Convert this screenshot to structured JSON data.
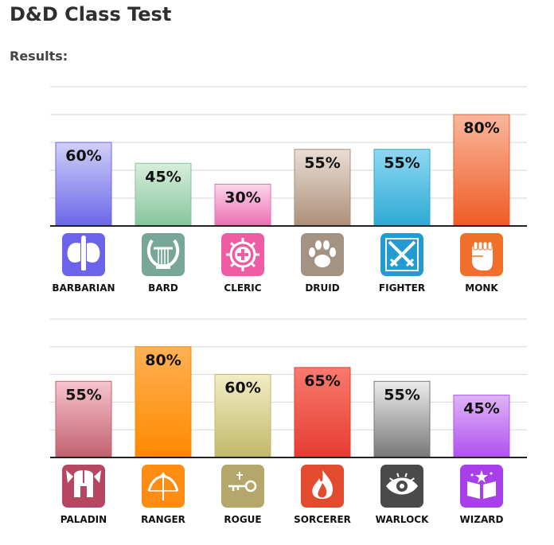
{
  "page": {
    "title": "D&D Class Test",
    "results_label": "Results:"
  },
  "chart_data": [
    {
      "type": "bar",
      "categories": [
        "BARBARIAN",
        "BARD",
        "CLERIC",
        "DRUID",
        "FIGHTER",
        "MONK"
      ],
      "values": [
        60,
        45,
        30,
        55,
        55,
        80
      ],
      "labels": [
        "60%",
        "45%",
        "30%",
        "55%",
        "55%",
        "80%"
      ],
      "ylim": [
        0,
        100
      ],
      "grid": true,
      "colors": [
        [
          "#d0d0f7",
          "#6b66e8"
        ],
        [
          "#d7eedc",
          "#86c59b"
        ],
        [
          "#fcd6ea",
          "#ea6fb1"
        ],
        [
          "#e9ded6",
          "#ad8f78"
        ],
        [
          "#8ed8f3",
          "#2ea9d3"
        ],
        [
          "#f8b79d",
          "#ef5b25"
        ]
      ],
      "icons": [
        {
          "name": "battle-axe-icon",
          "color": "#6b63e9"
        },
        {
          "name": "lyre-icon",
          "color": "#78a79a"
        },
        {
          "name": "holy-symbol-icon",
          "color": "#ee5ca3"
        },
        {
          "name": "paw-icon",
          "color": "#a49382"
        },
        {
          "name": "crossed-swords-icon",
          "color": "#229bd2"
        },
        {
          "name": "fist-icon",
          "color": "#f0702b"
        }
      ]
    },
    {
      "type": "bar",
      "categories": [
        "PALADIN",
        "RANGER",
        "ROGUE",
        "SORCERER",
        "WARLOCK",
        "WIZARD"
      ],
      "values": [
        55,
        80,
        60,
        65,
        55,
        45
      ],
      "labels": [
        "55%",
        "80%",
        "60%",
        "65%",
        "55%",
        "45%"
      ],
      "ylim": [
        0,
        100
      ],
      "grid": true,
      "colors": [
        [
          "#f6c4cf",
          "#c1606e"
        ],
        [
          "#ffb054",
          "#ff8a00"
        ],
        [
          "#f1edc5",
          "#c2b86a"
        ],
        [
          "#f97a6d",
          "#e53c32"
        ],
        [
          "#ececec",
          "#777777"
        ],
        [
          "#dfb5f6",
          "#b050ee"
        ]
      ],
      "icons": [
        {
          "name": "winged-helmet-icon",
          "color": "#b74662"
        },
        {
          "name": "bow-icon",
          "color": "#ff8d14"
        },
        {
          "name": "lockpick-icon",
          "color": "#b5a76c"
        },
        {
          "name": "flame-icon",
          "color": "#e34b2e"
        },
        {
          "name": "eye-icon",
          "color": "#4a4a4a"
        },
        {
          "name": "spellbook-icon",
          "color": "#a93fe8"
        }
      ]
    }
  ]
}
